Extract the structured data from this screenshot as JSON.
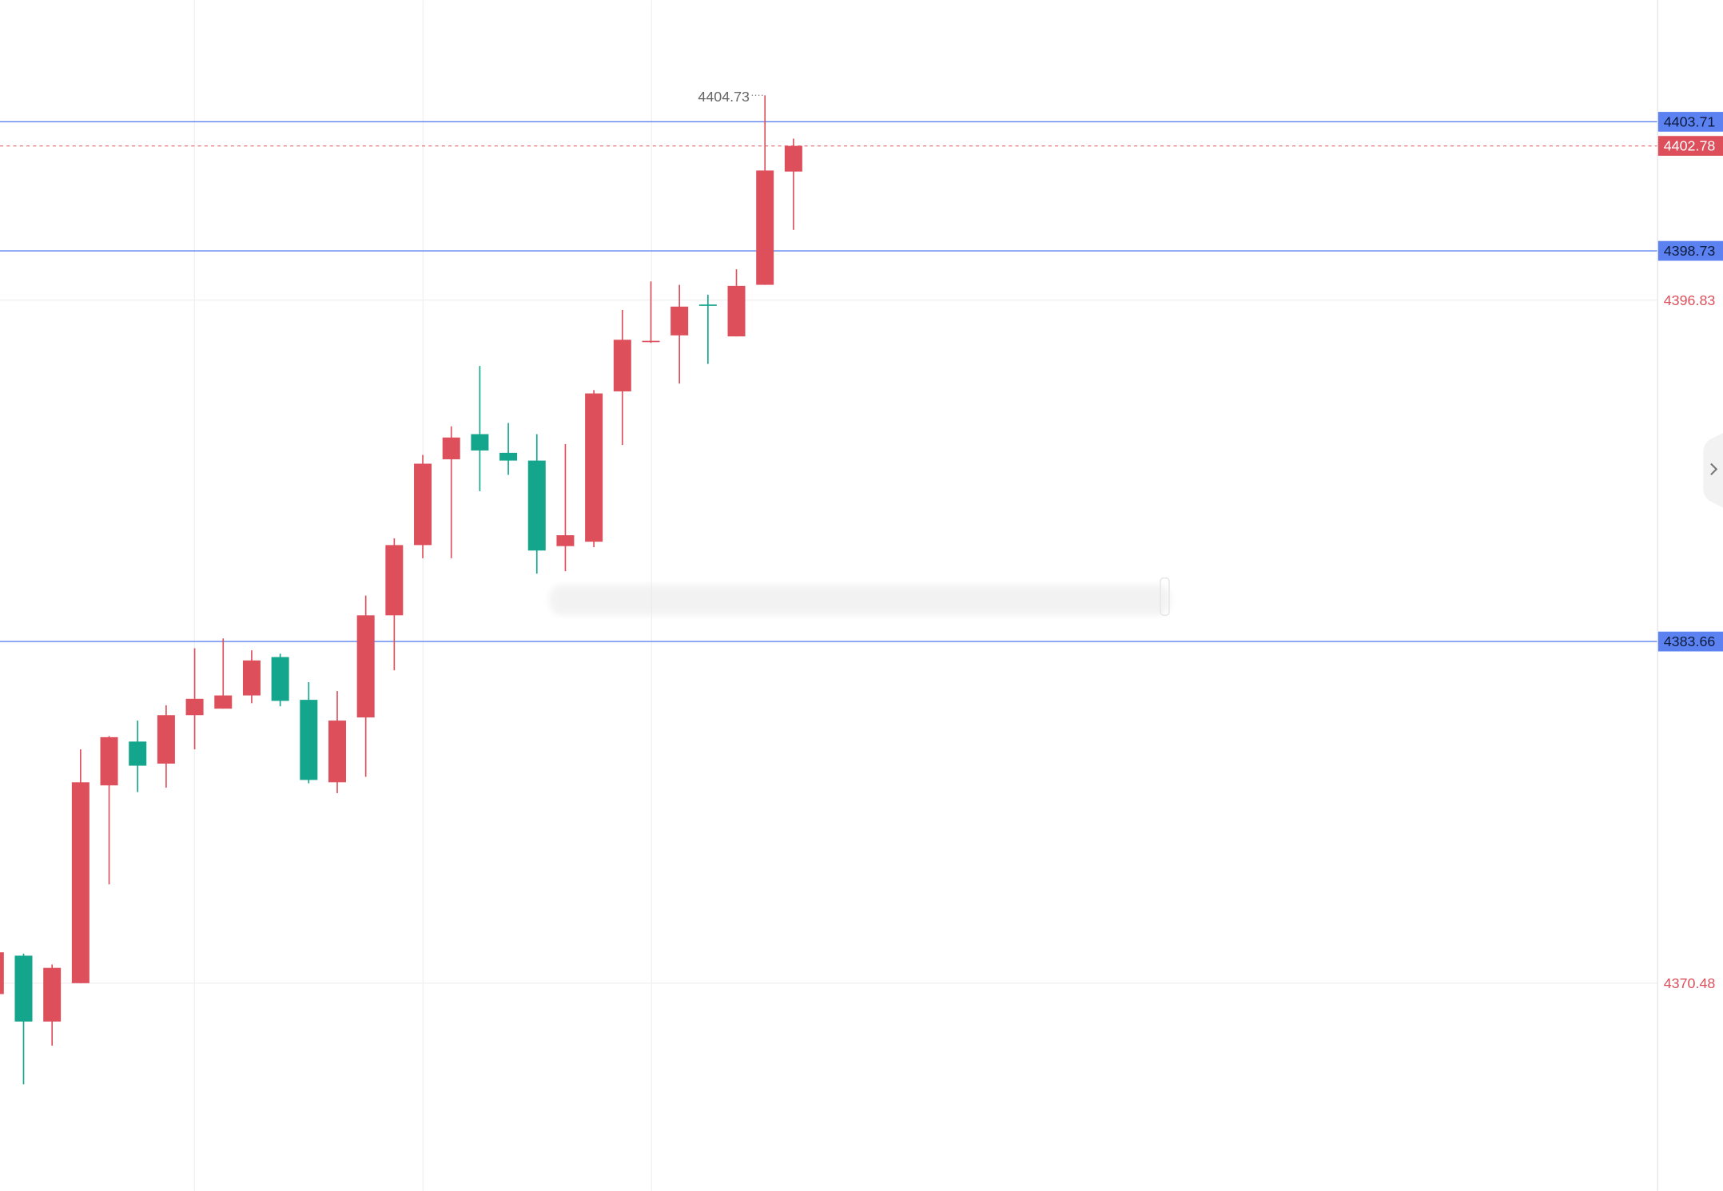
{
  "chart_data": {
    "type": "candlestick",
    "open": [
      4370.06,
      4371.54,
      4369.0,
      4370.48,
      4378.11,
      4379.8,
      4378.95,
      4380.82,
      4381.07,
      4381.58,
      4383.06,
      4381.41,
      4378.23,
      4380.73,
      4384.67,
      4387.38,
      4390.69,
      4391.66,
      4390.94,
      4390.64,
      4387.34,
      4387.51,
      4393.31,
      4395.22,
      4395.47,
      4396.66,
      4395.43,
      4397.42,
      4401.79
    ],
    "high": [
      4371.75,
      4371.62,
      4371.2,
      4379.5,
      4380.01,
      4380.61,
      4381.2,
      4383.4,
      4383.78,
      4383.32,
      4383.19,
      4382.09,
      4381.75,
      4385.43,
      4387.64,
      4390.86,
      4391.96,
      4394.29,
      4392.09,
      4391.66,
      4391.28,
      4393.36,
      4396.45,
      4397.55,
      4397.42,
      4397.04,
      4398.02,
      4404.73,
      4403.06
    ],
    "low": [
      4370.06,
      4366.58,
      4368.07,
      4370.48,
      4374.29,
      4377.85,
      4378.02,
      4379.5,
      4381.07,
      4381.28,
      4381.16,
      4378.19,
      4377.81,
      4378.44,
      4382.55,
      4386.87,
      4386.87,
      4389.46,
      4390.09,
      4386.28,
      4386.37,
      4387.3,
      4391.24,
      4395.18,
      4393.61,
      4394.37,
      4395.43,
      4397.42,
      4399.54
    ],
    "close": [
      4371.67,
      4369.0,
      4371.07,
      4378.23,
      4379.97,
      4378.87,
      4380.82,
      4381.45,
      4381.58,
      4382.93,
      4381.37,
      4378.32,
      4380.61,
      4384.67,
      4387.38,
      4390.52,
      4391.53,
      4391.03,
      4390.64,
      4387.17,
      4387.76,
      4393.23,
      4395.3,
      4395.26,
      4396.58,
      4396.62,
      4397.38,
      4401.83,
      4402.78
    ],
    "up_color": "#dd4f5b",
    "down_color": "#13a68c",
    "ylim": [
      4362.47,
      4408.4
    ],
    "yticks": [
      4370.48,
      4396.83
    ],
    "grid": true,
    "price_lines": [
      4403.71,
      4398.73,
      4383.66
    ],
    "price_line_color": "#5b82f0"
  }
}
